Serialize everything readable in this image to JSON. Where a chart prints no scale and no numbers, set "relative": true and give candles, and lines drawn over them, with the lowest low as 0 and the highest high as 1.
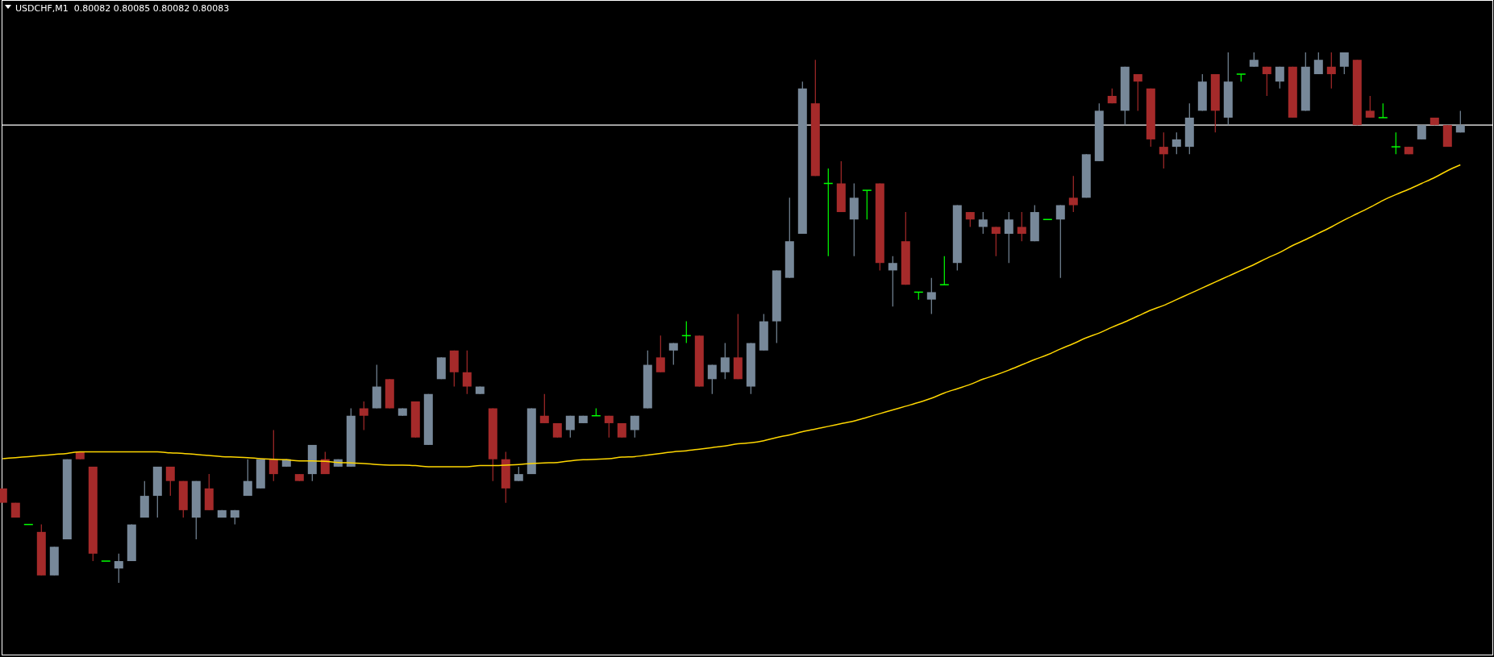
{
  "chart_data": {
    "type": "candlestick",
    "title": "USDCHF,M1  0.80082 0.80085 0.80082 0.80083",
    "relative": true,
    "categories": [
      null,
      null,
      null,
      null,
      null,
      null,
      null,
      null,
      null,
      null,
      null,
      null,
      null,
      null,
      null,
      null,
      null,
      null,
      null,
      null,
      null,
      null,
      null,
      null,
      null,
      null,
      null,
      null,
      null,
      null,
      null,
      null,
      null,
      null,
      null,
      null,
      null,
      null,
      null,
      null,
      null,
      null,
      null,
      null,
      null,
      null,
      null,
      null,
      null,
      null,
      null,
      null,
      null,
      null,
      null,
      null,
      null,
      null,
      null,
      null,
      null,
      null,
      null,
      null,
      null,
      null,
      null,
      null,
      null,
      null,
      null,
      null,
      null,
      null,
      null,
      null,
      null,
      null,
      null,
      null,
      null,
      null,
      null,
      null,
      null,
      null,
      null,
      null,
      null,
      null,
      null,
      null,
      null,
      null,
      null,
      null,
      null,
      null,
      null,
      null,
      null,
      null,
      null,
      null,
      null,
      null,
      null,
      null,
      null,
      null,
      null,
      null,
      null,
      null
    ],
    "ohlc": [
      [
        0.178,
        0.178,
        0.151,
        0.151
      ],
      [
        0.151,
        0.151,
        0.123,
        0.123
      ],
      [
        0.11,
        0.11,
        0.11,
        0.11
      ],
      [
        0.096,
        0.11,
        0.014,
        0.014
      ],
      [
        0.014,
        0.068,
        0.014,
        0.068
      ],
      [
        0.082,
        0.233,
        0.082,
        0.233
      ],
      [
        0.247,
        0.247,
        0.233,
        0.233
      ],
      [
        0.219,
        0.219,
        0.041,
        0.055
      ],
      [
        0.041,
        0.041,
        0.041,
        0.041
      ],
      [
        0.027,
        0.055,
        0,
        0.041
      ],
      [
        0.041,
        0.11,
        0.041,
        0.11
      ],
      [
        0.123,
        0.192,
        0.123,
        0.164
      ],
      [
        0.164,
        0.219,
        0.123,
        0.219
      ],
      [
        0.219,
        0.219,
        0.164,
        0.192
      ],
      [
        0.192,
        0.192,
        0.123,
        0.137
      ],
      [
        0.123,
        0.192,
        0.082,
        0.192
      ],
      [
        0.178,
        0.205,
        0.137,
        0.137
      ],
      [
        0.123,
        0.137,
        0.123,
        0.137
      ],
      [
        0.123,
        0.137,
        0.11,
        0.137
      ],
      [
        0.164,
        0.233,
        0.164,
        0.192
      ],
      [
        0.178,
        0.233,
        0.178,
        0.233
      ],
      [
        0.233,
        0.288,
        0.192,
        0.205
      ],
      [
        0.219,
        0.233,
        0.219,
        0.233
      ],
      [
        0.205,
        0.205,
        0.192,
        0.192
      ],
      [
        0.205,
        0.26,
        0.192,
        0.26
      ],
      [
        0.233,
        0.247,
        0.205,
        0.205
      ],
      [
        0.219,
        0.233,
        0.219,
        0.233
      ],
      [
        0.219,
        0.329,
        0.219,
        0.315
      ],
      [
        0.329,
        0.342,
        0.288,
        0.315
      ],
      [
        0.329,
        0.411,
        0.329,
        0.37
      ],
      [
        0.384,
        0.384,
        0.329,
        0.329
      ],
      [
        0.315,
        0.329,
        0.315,
        0.329
      ],
      [
        0.342,
        0.342,
        0.274,
        0.274
      ],
      [
        0.26,
        0.356,
        0.26,
        0.356
      ],
      [
        0.384,
        0.425,
        0.384,
        0.425
      ],
      [
        0.438,
        0.438,
        0.37,
        0.397
      ],
      [
        0.397,
        0.438,
        0.356,
        0.37
      ],
      [
        0.356,
        0.37,
        0.356,
        0.37
      ],
      [
        0.329,
        0.329,
        0.192,
        0.233
      ],
      [
        0.233,
        0.247,
        0.151,
        0.178
      ],
      [
        0.192,
        0.219,
        0.192,
        0.205
      ],
      [
        0.205,
        0.329,
        0.205,
        0.329
      ],
      [
        0.315,
        0.356,
        0.301,
        0.301
      ],
      [
        0.301,
        0.301,
        0.274,
        0.274
      ],
      [
        0.288,
        0.315,
        0.274,
        0.315
      ],
      [
        0.301,
        0.315,
        0.301,
        0.315
      ],
      [
        0.315,
        0.329,
        0.315,
        0.315
      ],
      [
        0.315,
        0.315,
        0.274,
        0.301
      ],
      [
        0.301,
        0.301,
        0.274,
        0.274
      ],
      [
        0.288,
        0.315,
        0.274,
        0.315
      ],
      [
        0.329,
        0.438,
        0.329,
        0.411
      ],
      [
        0.425,
        0.466,
        0.397,
        0.397
      ],
      [
        0.438,
        0.452,
        0.411,
        0.452
      ],
      [
        0.466,
        0.493,
        0.452,
        0.466
      ],
      [
        0.466,
        0.466,
        0.37,
        0.37
      ],
      [
        0.384,
        0.411,
        0.356,
        0.411
      ],
      [
        0.397,
        0.452,
        0.384,
        0.425
      ],
      [
        0.425,
        0.507,
        0.384,
        0.384
      ],
      [
        0.37,
        0.452,
        0.356,
        0.452
      ],
      [
        0.438,
        0.507,
        0.438,
        0.493
      ],
      [
        0.493,
        0.589,
        0.452,
        0.589
      ],
      [
        0.575,
        0.726,
        0.575,
        0.644
      ],
      [
        0.658,
        0.945,
        0.658,
        0.932
      ],
      [
        0.904,
        0.986,
        0.767,
        0.767
      ],
      [
        0.753,
        0.781,
        0.616,
        0.753
      ],
      [
        0.753,
        0.795,
        0.699,
        0.699
      ],
      [
        0.685,
        0.753,
        0.616,
        0.726
      ],
      [
        0.74,
        0.74,
        0.685,
        0.74
      ],
      [
        0.753,
        0.753,
        0.589,
        0.603
      ],
      [
        0.589,
        0.616,
        0.521,
        0.603
      ],
      [
        0.644,
        0.699,
        0.562,
        0.562
      ],
      [
        0.548,
        0.548,
        0.534,
        0.548
      ],
      [
        0.534,
        0.575,
        0.507,
        0.548
      ],
      [
        0.562,
        0.616,
        0.562,
        0.562
      ],
      [
        0.603,
        0.712,
        0.589,
        0.712
      ],
      [
        0.699,
        0.699,
        0.671,
        0.685
      ],
      [
        0.671,
        0.699,
        0.658,
        0.685
      ],
      [
        0.671,
        0.671,
        0.616,
        0.658
      ],
      [
        0.658,
        0.699,
        0.603,
        0.685
      ],
      [
        0.671,
        0.699,
        0.644,
        0.658
      ],
      [
        0.644,
        0.712,
        0.644,
        0.699
      ],
      [
        0.685,
        0.685,
        0.685,
        0.685
      ],
      [
        0.685,
        0.712,
        0.575,
        0.712
      ],
      [
        0.726,
        0.767,
        0.699,
        0.712
      ],
      [
        0.726,
        0.808,
        0.726,
        0.808
      ],
      [
        0.795,
        0.904,
        0.795,
        0.89
      ],
      [
        0.918,
        0.932,
        0.904,
        0.904
      ],
      [
        0.89,
        0.973,
        0.863,
        0.973
      ],
      [
        0.959,
        0.959,
        0.89,
        0.945
      ],
      [
        0.932,
        0.932,
        0.822,
        0.836
      ],
      [
        0.822,
        0.849,
        0.781,
        0.808
      ],
      [
        0.822,
        0.849,
        0.808,
        0.836
      ],
      [
        0.822,
        0.904,
        0.808,
        0.877
      ],
      [
        0.89,
        0.959,
        0.89,
        0.945
      ],
      [
        0.959,
        0.959,
        0.849,
        0.89
      ],
      [
        0.877,
        1,
        0.863,
        0.945
      ],
      [
        0.959,
        0.959,
        0.945,
        0.959
      ],
      [
        0.973,
        1,
        0.973,
        0.986
      ],
      [
        0.973,
        0.973,
        0.918,
        0.959
      ],
      [
        0.945,
        0.973,
        0.932,
        0.973
      ],
      [
        0.973,
        0.973,
        0.877,
        0.877
      ],
      [
        0.89,
        1,
        0.89,
        0.973
      ],
      [
        0.959,
        1,
        0.959,
        0.986
      ],
      [
        0.973,
        1,
        0.932,
        0.959
      ],
      [
        0.973,
        1,
        0.959,
        1
      ],
      [
        0.986,
        0.986,
        0.863,
        0.863
      ],
      [
        0.89,
        0.918,
        0.877,
        0.877
      ],
      [
        0.877,
        0.904,
        0.877,
        0.877
      ],
      [
        0.822,
        0.849,
        0.808,
        0.822
      ],
      [
        0.822,
        0.822,
        0.808,
        0.808
      ],
      [
        0.836,
        0.863,
        0.836,
        0.863
      ],
      [
        0.877,
        0.877,
        0.863,
        0.863
      ],
      [
        0.863,
        0.863,
        0.822,
        0.822
      ],
      [
        0.849,
        0.89,
        0.849,
        0.863
      ]
    ],
    "colors": [
      "#a52a2a",
      "#a52a2a",
      "#00ff00",
      "#a52a2a",
      "#778899",
      "#778899",
      "#a52a2a",
      "#a52a2a",
      "#00ff00",
      "#778899",
      "#778899",
      "#778899",
      "#778899",
      "#a52a2a",
      "#a52a2a",
      "#778899",
      "#a52a2a",
      "#778899",
      "#778899",
      "#778899",
      "#778899",
      "#a52a2a",
      "#778899",
      "#a52a2a",
      "#778899",
      "#a52a2a",
      "#778899",
      "#778899",
      "#a52a2a",
      "#778899",
      "#a52a2a",
      "#778899",
      "#a52a2a",
      "#778899",
      "#778899",
      "#a52a2a",
      "#a52a2a",
      "#778899",
      "#a52a2a",
      "#a52a2a",
      "#778899",
      "#778899",
      "#a52a2a",
      "#a52a2a",
      "#778899",
      "#778899",
      "#00ff00",
      "#a52a2a",
      "#a52a2a",
      "#778899",
      "#778899",
      "#a52a2a",
      "#778899",
      "#00ff00",
      "#a52a2a",
      "#778899",
      "#778899",
      "#a52a2a",
      "#778899",
      "#778899",
      "#778899",
      "#778899",
      "#778899",
      "#a52a2a",
      "#00ff00",
      "#a52a2a",
      "#778899",
      "#00ff00",
      "#a52a2a",
      "#778899",
      "#a52a2a",
      "#00ff00",
      "#778899",
      "#00ff00",
      "#778899",
      "#a52a2a",
      "#778899",
      "#a52a2a",
      "#778899",
      "#a52a2a",
      "#778899",
      "#00ff00",
      "#778899",
      "#a52a2a",
      "#778899",
      "#778899",
      "#a52a2a",
      "#778899",
      "#a52a2a",
      "#a52a2a",
      "#a52a2a",
      "#778899",
      "#778899",
      "#778899",
      "#a52a2a",
      "#778899",
      "#00ff00",
      "#778899",
      "#a52a2a",
      "#778899",
      "#a52a2a",
      "#778899",
      "#778899",
      "#a52a2a",
      "#778899",
      "#a52a2a",
      "#a52a2a",
      "#00ff00",
      "#00ff00",
      "#a52a2a",
      "#778899",
      "#a52a2a",
      "#a52a2a",
      "#778899"
    ],
    "series": [
      {
        "type": "line",
        "color": "#ffd700",
        "values": [
          0.234,
          0.236,
          0.238,
          0.24,
          0.242,
          0.244,
          0.247,
          0.247,
          0.247,
          0.247,
          0.247,
          0.247,
          0.247,
          0.245,
          0.244,
          0.242,
          0.24,
          0.238,
          0.237,
          0.236,
          0.234,
          0.233,
          0.232,
          0.23,
          0.23,
          0.229,
          0.227,
          0.226,
          0.225,
          0.223,
          0.222,
          0.222,
          0.221,
          0.219,
          0.219,
          0.219,
          0.219,
          0.221,
          0.221,
          0.222,
          0.223,
          0.225,
          0.226,
          0.227,
          0.23,
          0.232,
          0.233,
          0.234,
          0.237,
          0.238,
          0.241,
          0.244,
          0.247,
          0.249,
          0.252,
          0.255,
          0.258,
          0.262,
          0.264,
          0.268,
          0.274,
          0.279,
          0.285,
          0.29,
          0.295,
          0.3,
          0.305,
          0.312,
          0.319,
          0.326,
          0.333,
          0.34,
          0.348,
          0.358,
          0.366,
          0.374,
          0.384,
          0.392,
          0.401,
          0.411,
          0.421,
          0.43,
          0.441,
          0.451,
          0.462,
          0.471,
          0.482,
          0.492,
          0.503,
          0.514,
          0.523,
          0.534,
          0.545,
          0.556,
          0.567,
          0.578,
          0.589,
          0.6,
          0.612,
          0.623,
          0.636,
          0.647,
          0.659,
          0.671,
          0.684,
          0.696,
          0.708,
          0.721,
          0.732,
          0.742,
          0.753,
          0.764,
          0.777,
          0.788
        ]
      }
    ],
    "ref_lines": [
      {
        "axis": "y",
        "value": 0.863,
        "color": "#ffffff"
      }
    ]
  }
}
